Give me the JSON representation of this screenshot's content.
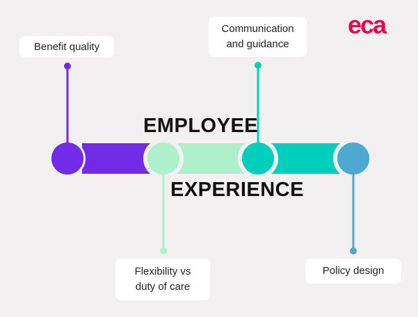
{
  "title_line1": "EMPLOYEE",
  "title_line2": "EXPERIENCE",
  "logo_text": "eca",
  "colors": {
    "background": "#f2f0f1",
    "purple": "#722ce8",
    "mint": "#aff0cc",
    "teal": "#00cfbb",
    "blue": "#4ea9d0",
    "logo": "#e4064f"
  },
  "labels": [
    "Benefit quality",
    "Communication and guidance",
    "Flexibility vs duty of care",
    "Policy design"
  ]
}
